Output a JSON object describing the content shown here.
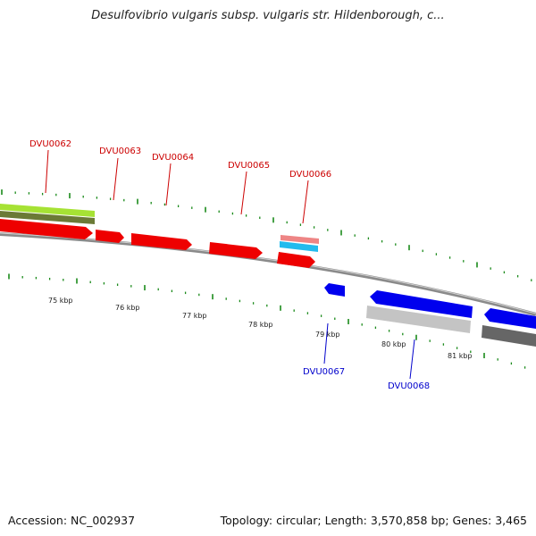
{
  "title": "Desulfovibrio vulgaris subsp. vulgaris str. Hildenborough, c...",
  "footer": {
    "accession": "Accession: NC_002937",
    "summary": "Topology: circular; Length: 3,570,858 bp; Genes: 3,465"
  },
  "colors": {
    "forward_gene": "#ee0000",
    "reverse_gene": "#0000ee",
    "forward_label": "#cc0000",
    "reverse_label": "#0000cc",
    "tick": "#1a8a1a",
    "backbone": "#888888",
    "green_feature": "#99dd33",
    "olive_feature": "#667733",
    "pink_feature": "#ee8888",
    "cyan_feature": "#22bbee",
    "light_gray_feature": "#c4c4c4",
    "dark_gray_feature": "#666666"
  },
  "scale_labels": [
    "75 kbp",
    "76 kbp",
    "77 kbp",
    "78 kbp",
    "79 kbp",
    "80 kbp",
    "81 kbp"
  ],
  "forward_genes": [
    "DVU0062",
    "DVU0063",
    "DVU0064",
    "DVU0065",
    "DVU0066"
  ],
  "reverse_genes": [
    "DVU0067",
    "DVU0068"
  ]
}
